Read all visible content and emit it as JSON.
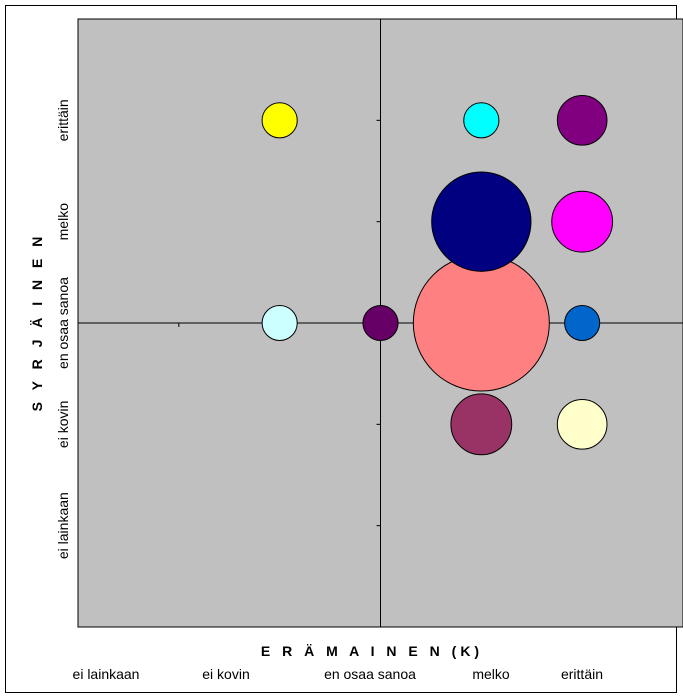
{
  "chart_data": {
    "type": "scatter",
    "subtype": "bubble",
    "xlabel": "E R Ä M A I N E N (K)",
    "ylabel": "S Y R J Ä I N E N",
    "x_categories": [
      "ei lainkaan",
      "ei kovin",
      "en osaa sanoa",
      "melko",
      "erittäin"
    ],
    "y_categories": [
      "ei lainkaan",
      "ei kovin",
      "en osaa sanoa",
      "melko",
      "erittäin"
    ],
    "xlim": [
      0,
      6
    ],
    "ylim": [
      0,
      6
    ],
    "axis_cross": [
      3,
      3
    ],
    "plot_background": "#c0c0c0",
    "grid": false,
    "legend": "none",
    "points": [
      {
        "x": 2,
        "y": 5,
        "size": 1,
        "color": "#ffff00"
      },
      {
        "x": 4,
        "y": 5,
        "size": 1,
        "color": "#00ffff"
      },
      {
        "x": 5,
        "y": 5,
        "size": 2,
        "color": "#800080"
      },
      {
        "x": 4,
        "y": 4,
        "size": 8,
        "color": "#000080"
      },
      {
        "x": 5,
        "y": 4,
        "size": 3,
        "color": "#ff00ff"
      },
      {
        "x": 2,
        "y": 3,
        "size": 1,
        "color": "#ccffff"
      },
      {
        "x": 3,
        "y": 3,
        "size": 1,
        "color": "#660066"
      },
      {
        "x": 4,
        "y": 3,
        "size": 15,
        "color": "#ff8080"
      },
      {
        "x": 5,
        "y": 3,
        "size": 1,
        "color": "#0066cc"
      },
      {
        "x": 4,
        "y": 2,
        "size": 3,
        "color": "#993366"
      },
      {
        "x": 5,
        "y": 2,
        "size": 2,
        "color": "#ffffcc"
      }
    ]
  }
}
